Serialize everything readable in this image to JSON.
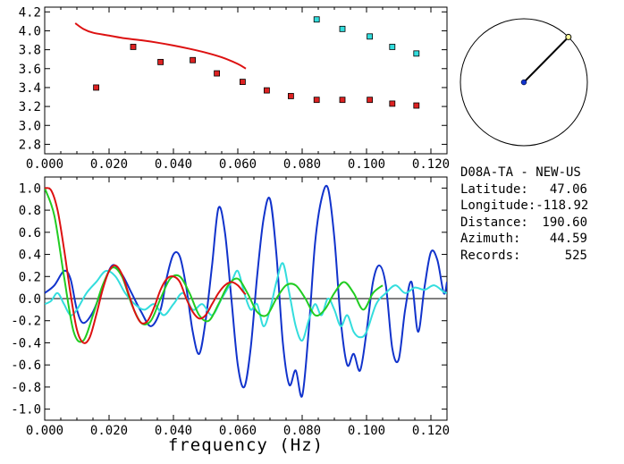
{
  "station": {
    "title": "D08A-TA - NEW-US",
    "fields": [
      {
        "key": "Latitude:",
        "value": "47.06"
      },
      {
        "key": "Longitude:",
        "value": "-118.92"
      },
      {
        "key": "Distance:",
        "value": "190.60"
      },
      {
        "key": "Azimuth:",
        "value": "44.59"
      },
      {
        "key": "Records:",
        "value": "525"
      }
    ]
  },
  "azimuth_deg": 44.59,
  "colors": {
    "red": "#dd1111",
    "blue": "#1133cc",
    "green": "#22cc22",
    "cyan": "#33dddd",
    "marker_red": "#dd2222",
    "marker_cyan": "#33dddd"
  },
  "chart_data": [
    {
      "type": "scatter",
      "xlim": [
        0.0,
        0.125
      ],
      "ylim": [
        2.7,
        4.25
      ],
      "x_ticks": [
        "0.000",
        "0.020",
        "0.040",
        "0.060",
        "0.080",
        "0.100",
        "0.120"
      ],
      "x_tick_values": [
        0.0,
        0.02,
        0.04,
        0.06,
        0.08,
        0.1,
        0.12
      ],
      "y_ticks": [
        "2.8",
        "3.0",
        "3.2",
        "3.4",
        "3.6",
        "3.8",
        "4.0",
        "4.2"
      ],
      "y_tick_values": [
        2.8,
        3.0,
        3.2,
        3.4,
        3.6,
        3.8,
        4.0,
        4.2
      ],
      "series": [
        {
          "color": "red",
          "kind": "markers",
          "x": [
            0.016,
            0.0275,
            0.036,
            0.046,
            0.0535,
            0.0615,
            0.069,
            0.0765,
            0.0845,
            0.0925,
            0.101,
            0.108,
            0.1155
          ],
          "y": [
            3.4,
            3.83,
            3.67,
            3.69,
            3.55,
            3.46,
            3.37,
            3.31,
            3.27,
            3.27,
            3.27,
            3.23,
            3.21
          ]
        },
        {
          "color": "cyan",
          "kind": "markers",
          "x": [
            0.0845,
            0.0925,
            0.101,
            0.108,
            0.1155
          ],
          "y": [
            4.12,
            4.02,
            3.94,
            3.83,
            3.76
          ]
        },
        {
          "color": "red",
          "kind": "line",
          "x": [
            0.0095,
            0.012,
            0.015,
            0.02,
            0.025,
            0.03,
            0.035,
            0.04,
            0.045,
            0.05,
            0.055,
            0.06,
            0.0625
          ],
          "y": [
            4.08,
            4.02,
            3.98,
            3.95,
            3.92,
            3.9,
            3.875,
            3.845,
            3.81,
            3.77,
            3.72,
            3.65,
            3.6
          ]
        }
      ]
    },
    {
      "type": "line",
      "xlabel": "frequency (Hz)",
      "xlim": [
        0.0,
        0.125
      ],
      "ylim": [
        -1.1,
        1.1
      ],
      "x_ticks": [
        "0.000",
        "0.020",
        "0.040",
        "0.060",
        "0.080",
        "0.100",
        "0.120"
      ],
      "x_tick_values": [
        0.0,
        0.02,
        0.04,
        0.06,
        0.08,
        0.1,
        0.12
      ],
      "y_ticks": [
        "-1.0",
        "-0.8",
        "-0.6",
        "-0.4",
        "-0.2",
        "0.0",
        "0.2",
        "0.4",
        "0.6",
        "0.8",
        "1.0"
      ],
      "y_tick_values": [
        -1.0,
        -0.8,
        -0.6,
        -0.4,
        -0.2,
        0.0,
        0.2,
        0.4,
        0.6,
        0.8,
        1.0
      ],
      "series": [
        {
          "color": "blue",
          "x": [
            0.0,
            0.003,
            0.006,
            0.008,
            0.01,
            0.012,
            0.015,
            0.018,
            0.021,
            0.024,
            0.027,
            0.03,
            0.033,
            0.036,
            0.038,
            0.04,
            0.042,
            0.044,
            0.046,
            0.048,
            0.05,
            0.052,
            0.054,
            0.056,
            0.058,
            0.06,
            0.062,
            0.064,
            0.066,
            0.068,
            0.07,
            0.072,
            0.074,
            0.076,
            0.078,
            0.08,
            0.082,
            0.084,
            0.086,
            0.088,
            0.09,
            0.092,
            0.094,
            0.096,
            0.098,
            0.1,
            0.102,
            0.104,
            0.106,
            0.108,
            0.11,
            0.112,
            0.114,
            0.116,
            0.118,
            0.12,
            0.122,
            0.124,
            0.125
          ],
          "y": [
            0.05,
            0.12,
            0.25,
            0.18,
            -0.1,
            -0.22,
            -0.12,
            0.1,
            0.3,
            0.22,
            0.05,
            -0.12,
            -0.25,
            -0.1,
            0.2,
            0.4,
            0.38,
            0.1,
            -0.3,
            -0.5,
            -0.2,
            0.3,
            0.82,
            0.6,
            0.0,
            -0.6,
            -0.8,
            -0.45,
            0.2,
            0.72,
            0.9,
            0.4,
            -0.4,
            -0.78,
            -0.65,
            -0.88,
            -0.3,
            0.5,
            0.9,
            1.0,
            0.55,
            -0.2,
            -0.6,
            -0.5,
            -0.65,
            -0.3,
            0.15,
            0.3,
            0.12,
            -0.45,
            -0.55,
            -0.1,
            0.15,
            -0.3,
            0.1,
            0.42,
            0.35,
            0.05,
            0.15
          ]
        },
        {
          "color": "cyan",
          "x": [
            0.0,
            0.002,
            0.004,
            0.006,
            0.008,
            0.01,
            0.013,
            0.016,
            0.019,
            0.022,
            0.025,
            0.028,
            0.031,
            0.034,
            0.037,
            0.04,
            0.043,
            0.046,
            0.049,
            0.052,
            0.055,
            0.058,
            0.06,
            0.062,
            0.064,
            0.066,
            0.068,
            0.07,
            0.072,
            0.074,
            0.076,
            0.078,
            0.08,
            0.082,
            0.084,
            0.086,
            0.088,
            0.09,
            0.092,
            0.094,
            0.096,
            0.098,
            0.1,
            0.103,
            0.106,
            0.109,
            0.112,
            0.115,
            0.118,
            0.121,
            0.124,
            0.125
          ],
          "y": [
            -0.05,
            -0.02,
            0.05,
            -0.05,
            -0.15,
            -0.1,
            0.05,
            0.15,
            0.25,
            0.2,
            0.05,
            -0.05,
            -0.1,
            -0.05,
            -0.15,
            -0.05,
            0.05,
            -0.1,
            -0.05,
            -0.15,
            0.0,
            0.15,
            0.25,
            0.05,
            -0.1,
            -0.05,
            -0.25,
            -0.1,
            0.15,
            0.32,
            0.05,
            -0.25,
            -0.38,
            -0.2,
            -0.05,
            -0.15,
            0.0,
            -0.1,
            -0.25,
            -0.15,
            -0.3,
            -0.35,
            -0.3,
            -0.05,
            0.05,
            0.12,
            0.05,
            0.1,
            0.08,
            0.12,
            0.06,
            0.05
          ]
        },
        {
          "color": "green",
          "x": [
            0.0,
            0.003,
            0.006,
            0.009,
            0.012,
            0.015,
            0.018,
            0.021,
            0.024,
            0.027,
            0.03,
            0.033,
            0.036,
            0.039,
            0.042,
            0.045,
            0.048,
            0.051,
            0.054,
            0.057,
            0.06,
            0.063,
            0.066,
            0.069,
            0.072,
            0.075,
            0.078,
            0.081,
            0.084,
            0.087,
            0.09,
            0.093,
            0.096,
            0.099,
            0.102,
            0.105
          ],
          "y": [
            1.0,
            0.75,
            0.2,
            -0.3,
            -0.38,
            -0.15,
            0.12,
            0.28,
            0.2,
            -0.05,
            -0.22,
            -0.2,
            0.0,
            0.18,
            0.2,
            0.05,
            -0.15,
            -0.2,
            -0.05,
            0.12,
            0.18,
            0.05,
            -0.12,
            -0.15,
            0.0,
            0.12,
            0.12,
            0.0,
            -0.15,
            -0.1,
            0.05,
            0.15,
            0.05,
            -0.1,
            0.05,
            0.12
          ]
        },
        {
          "color": "red",
          "x": [
            0.0,
            0.002,
            0.004,
            0.006,
            0.008,
            0.01,
            0.012,
            0.014,
            0.016,
            0.018,
            0.02,
            0.022,
            0.024,
            0.026,
            0.028,
            0.03,
            0.032,
            0.034,
            0.036,
            0.038,
            0.04,
            0.042,
            0.044,
            0.046,
            0.048,
            0.05,
            0.052,
            0.054,
            0.056,
            0.058,
            0.06,
            0.062,
            0.0625
          ],
          "y": [
            1.0,
            0.98,
            0.8,
            0.45,
            0.05,
            -0.28,
            -0.4,
            -0.35,
            -0.15,
            0.08,
            0.25,
            0.3,
            0.22,
            0.05,
            -0.12,
            -0.22,
            -0.2,
            -0.08,
            0.08,
            0.18,
            0.2,
            0.15,
            0.0,
            -0.12,
            -0.18,
            -0.15,
            -0.05,
            0.05,
            0.12,
            0.15,
            0.12,
            0.05,
            0.04
          ]
        }
      ]
    }
  ]
}
